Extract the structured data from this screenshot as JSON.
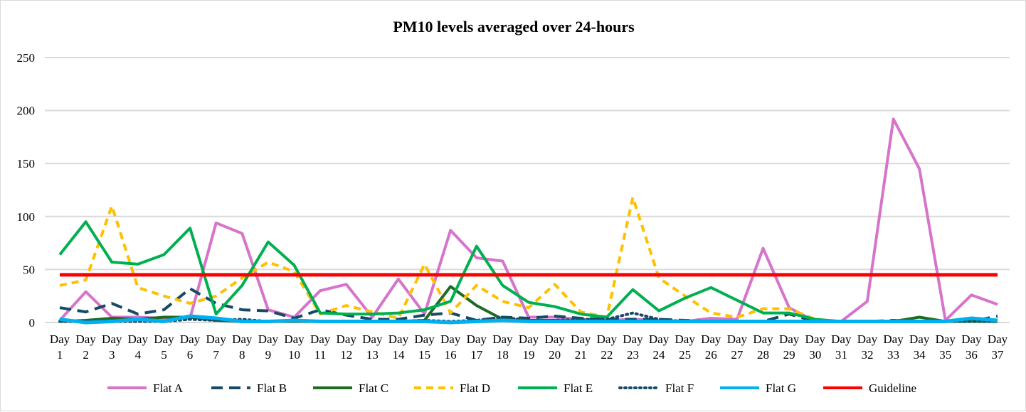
{
  "chart_data": {
    "type": "line",
    "title": "PM10 levels averaged over 24-hours",
    "xlabel": "",
    "ylabel": "",
    "ylim": [
      0,
      250
    ],
    "yticks": [
      0,
      50,
      100,
      150,
      200,
      250
    ],
    "grid": true,
    "legend_position": "bottom",
    "categories": [
      "Day 1",
      "Day 2",
      "Day 3",
      "Day 4",
      "Day 5",
      "Day 6",
      "Day 7",
      "Day 8",
      "Day 9",
      "Day 10",
      "Day 11",
      "Day 12",
      "Day 13",
      "Day 14",
      "Day 15",
      "Day 16",
      "Day 17",
      "Day 18",
      "Day 19",
      "Day 20",
      "Day 21",
      "Day 22",
      "Day 23",
      "Day 24",
      "Day 25",
      "Day 26",
      "Day 27",
      "Day 28",
      "Day 29",
      "Day 30",
      "Day 31",
      "Day 32",
      "Day 33",
      "Day 34",
      "Day 35",
      "Day 36",
      "Day 37"
    ],
    "series": [
      {
        "name": "Flat A",
        "color": "#d674cb",
        "dash": "solid",
        "values": [
          2,
          29,
          5,
          5,
          4,
          4,
          94,
          84,
          12,
          5,
          30,
          36,
          5,
          41,
          8,
          87,
          61,
          58,
          5,
          5,
          3,
          2,
          3,
          2,
          1,
          4,
          3,
          70,
          14,
          1,
          1,
          20,
          192,
          145,
          2,
          26,
          17
        ]
      },
      {
        "name": "Flat B",
        "color": "#174a66",
        "dash": "longdash",
        "values": [
          14,
          10,
          18,
          8,
          12,
          32,
          18,
          12,
          11,
          4,
          12,
          7,
          3,
          3,
          7,
          9,
          2,
          5,
          4,
          6,
          4,
          3,
          3,
          3,
          2,
          1,
          1,
          1,
          8,
          1,
          1,
          1,
          2,
          1,
          1,
          1,
          6
        ]
      },
      {
        "name": "Flat C",
        "color": "#1e6b24",
        "dash": "solid",
        "values": [
          1,
          2,
          4,
          3,
          5,
          5,
          2,
          1,
          1,
          1,
          1,
          1,
          1,
          1,
          2,
          34,
          16,
          3,
          2,
          2,
          1,
          1,
          1,
          1,
          1,
          1,
          1,
          1,
          1,
          1,
          1,
          1,
          1,
          5,
          1,
          1,
          1
        ]
      },
      {
        "name": "Flat D",
        "color": "#ffc000",
        "dash": "dash",
        "values": [
          35,
          40,
          110,
          33,
          25,
          18,
          25,
          42,
          57,
          48,
          8,
          16,
          10,
          4,
          55,
          9,
          35,
          20,
          14,
          36,
          10,
          5,
          118,
          42,
          25,
          9,
          5,
          13,
          13,
          3,
          1,
          1,
          1,
          1,
          1,
          1,
          1
        ]
      },
      {
        "name": "Flat E",
        "color": "#00b050",
        "dash": "solid",
        "values": [
          64,
          95,
          57,
          55,
          64,
          89,
          8,
          35,
          76,
          54,
          9,
          8,
          8,
          9,
          12,
          20,
          72,
          35,
          19,
          15,
          8,
          5,
          31,
          11,
          23,
          33,
          21,
          9,
          9,
          3,
          1,
          1,
          1,
          1,
          1,
          1,
          1
        ]
      },
      {
        "name": "Flat F",
        "color": "#174a66",
        "dash": "dot",
        "values": [
          1,
          1,
          1,
          1,
          1,
          3,
          2,
          3,
          1,
          2,
          1,
          1,
          1,
          1,
          2,
          1,
          2,
          5,
          2,
          2,
          3,
          3,
          9,
          3,
          1,
          1,
          1,
          1,
          1,
          1,
          1,
          1,
          1,
          1,
          1,
          1,
          1
        ]
      },
      {
        "name": "Flat G",
        "color": "#00b0f0",
        "dash": "solid",
        "values": [
          3,
          0,
          1,
          3,
          1,
          6,
          4,
          1,
          1,
          2,
          1,
          1,
          1,
          1,
          1,
          0,
          1,
          2,
          1,
          1,
          1,
          1,
          1,
          1,
          1,
          1,
          1,
          1,
          1,
          1,
          1,
          1,
          1,
          1,
          1,
          4,
          2
        ]
      },
      {
        "name": "Guideline",
        "color": "#ff0000",
        "dash": "solid",
        "values": [
          45,
          45,
          45,
          45,
          45,
          45,
          45,
          45,
          45,
          45,
          45,
          45,
          45,
          45,
          45,
          45,
          45,
          45,
          45,
          45,
          45,
          45,
          45,
          45,
          45,
          45,
          45,
          45,
          45,
          45,
          45,
          45,
          45,
          45,
          45,
          45,
          45
        ]
      }
    ]
  }
}
